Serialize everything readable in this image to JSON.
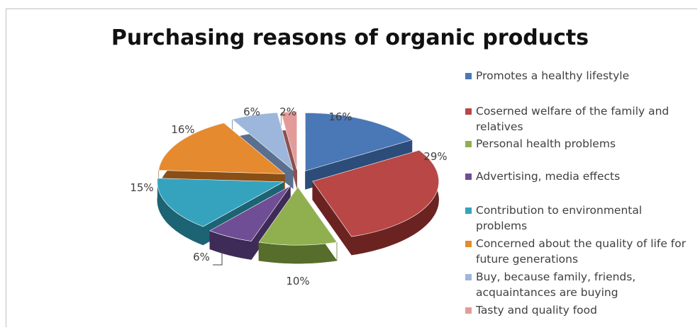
{
  "chart_data": {
    "type": "pie",
    "style": "3d exploded",
    "title": "Purchasing reasons of organic products",
    "legend_position": "right",
    "slices": [
      {
        "label": "Promotes a healthy lifestyle",
        "value": 16,
        "display": "16%",
        "color": "#4a77b5",
        "side": "#2c4c7a"
      },
      {
        "label": "Coserned  welfare of the family and relatives",
        "value": 29,
        "display": "29%",
        "color": "#b84745",
        "side": "#6b2322"
      },
      {
        "label": "Personal health problems",
        "value": 10,
        "display": "10%",
        "color": "#90b050",
        "side": "#566d2b"
      },
      {
        "label": "Advertising, media effects",
        "value": 6,
        "display": "6%",
        "color": "#6f4e95",
        "side": "#3f2b57"
      },
      {
        "label": "Contribution to environmental problems",
        "value": 15,
        "display": "15%",
        "color": "#35a3be",
        "side": "#1c6373"
      },
      {
        "label": "Concerned about the quality of life for future generations",
        "value": 16,
        "display": "16%",
        "color": "#e58a2e",
        "side": "#8a4f16"
      },
      {
        "label": "Buy, because family, friends, acquaintances are buying",
        "value": 6,
        "display": "6%",
        "color": "#9db6dc",
        "side": "#5b6f8f"
      },
      {
        "label": "Tasty and quality food",
        "value": 2,
        "display": "2%",
        "color": "#e39b99",
        "side": "#8c5150"
      }
    ]
  }
}
